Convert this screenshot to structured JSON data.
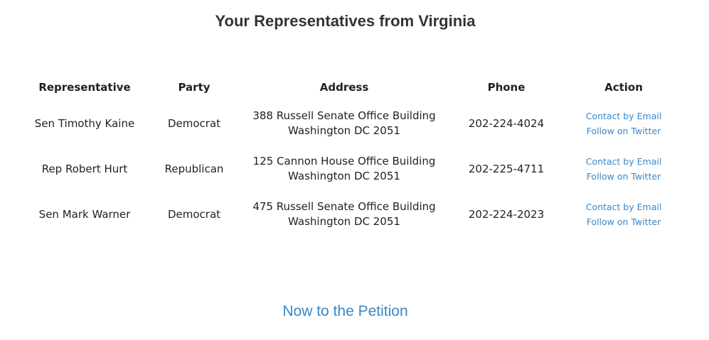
{
  "page": {
    "title": "Your Representatives from Virginia",
    "link_color": "#3a87c8"
  },
  "table": {
    "headers": {
      "representative": "Representative",
      "party": "Party",
      "address": "Address",
      "phone": "Phone",
      "action": "Action"
    },
    "rows": [
      {
        "representative": "Sen Timothy Kaine",
        "party": "Democrat",
        "address_line1": "388 Russell Senate Office Building",
        "address_line2": "Washington DC 2051",
        "phone": "202-224-4024",
        "email_label": "Contact by Email",
        "twitter_label": "Follow on Twitter"
      },
      {
        "representative": "Rep Robert Hurt",
        "party": "Republican",
        "address_line1": "125 Cannon House Office Building",
        "address_line2": "Washington DC 2051",
        "phone": "202-225-4711",
        "email_label": "Contact by Email",
        "twitter_label": "Follow on Twitter"
      },
      {
        "representative": "Sen Mark Warner",
        "party": "Democrat",
        "address_line1": "475 Russell Senate Office Building",
        "address_line2": "Washington DC 2051",
        "phone": "202-224-2023",
        "email_label": "Contact by Email",
        "twitter_label": "Follow on Twitter"
      }
    ]
  },
  "footer": {
    "petition_link": "Now to the Petition"
  }
}
